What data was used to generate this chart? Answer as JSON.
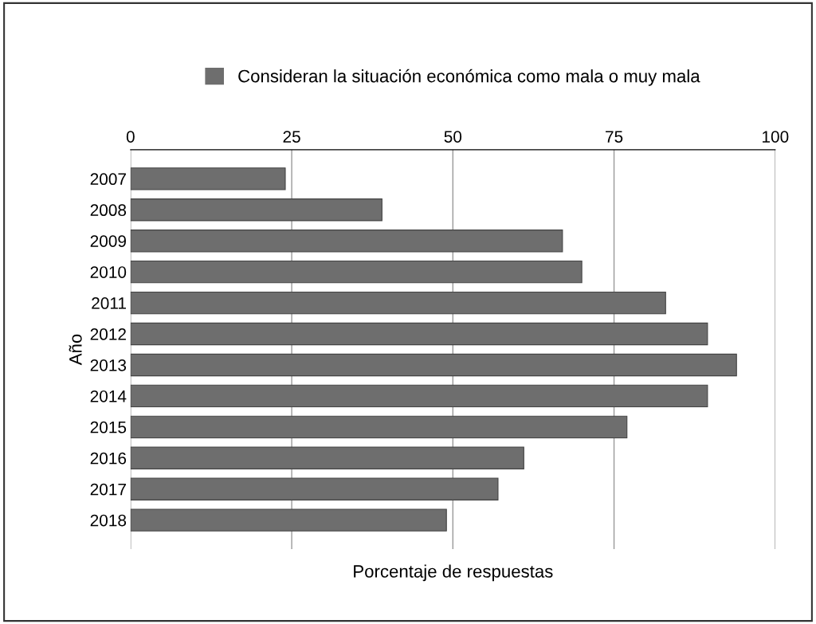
{
  "chart_data": {
    "type": "bar",
    "orientation": "horizontal",
    "xlabel": "Porcentaje de respuestas",
    "ylabel": "Año",
    "categories": [
      "2007",
      "2008",
      "2009",
      "2010",
      "2011",
      "2012",
      "2013",
      "2014",
      "2015",
      "2016",
      "2017",
      "2018"
    ],
    "series": [
      {
        "name": "Consideran la situación económica como mala o muy mala",
        "color": "#6e6e6e",
        "values": [
          24,
          39,
          67,
          70,
          83,
          89.5,
          94,
          89.5,
          77,
          61,
          57,
          49
        ]
      }
    ],
    "xlim": [
      0,
      100
    ],
    "xticks": [
      0,
      25,
      50,
      75,
      100
    ],
    "grid": "x",
    "legend": "top"
  }
}
